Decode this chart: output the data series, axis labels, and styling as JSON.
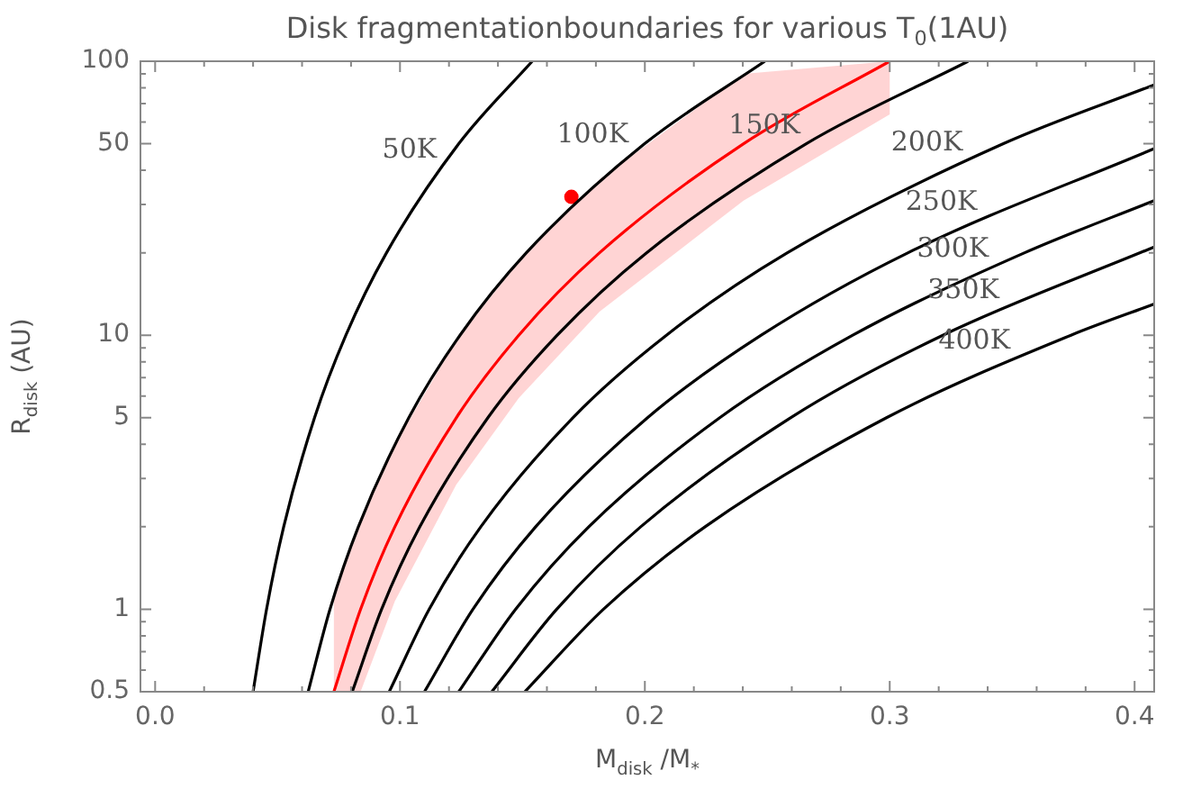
{
  "chart_data": {
    "type": "line",
    "title": "Disk fragmentationboundaries for various T$_{0}$(1AU)",
    "xlabel": "M$_{disk}$ /M$_{*}$",
    "ylabel": "R$_{disk}$ (AU)",
    "log": "y",
    "grid": false,
    "legend": false,
    "marker": "none",
    "line_style": "solid",
    "xlim": [
      -0.006,
      0.408
    ],
    "ylim": [
      0.5,
      100
    ],
    "xticks": [
      {
        "value": 0,
        "label": "0.0"
      },
      {
        "value": 0.02,
        "label": null
      },
      {
        "value": 0.04,
        "label": null
      },
      {
        "value": 0.06,
        "label": null
      },
      {
        "value": 0.08,
        "label": null
      },
      {
        "value": 0.1,
        "label": "0.1"
      },
      {
        "value": 0.12,
        "label": null
      },
      {
        "value": 0.14,
        "label": null
      },
      {
        "value": 0.16,
        "label": null
      },
      {
        "value": 0.18,
        "label": null
      },
      {
        "value": 0.2,
        "label": "0.2"
      },
      {
        "value": 0.22,
        "label": null
      },
      {
        "value": 0.24,
        "label": null
      },
      {
        "value": 0.26,
        "label": null
      },
      {
        "value": 0.28,
        "label": null
      },
      {
        "value": 0.3,
        "label": "0.3"
      },
      {
        "value": 0.32,
        "label": null
      },
      {
        "value": 0.34,
        "label": null
      },
      {
        "value": 0.36,
        "label": null
      },
      {
        "value": 0.38,
        "label": null
      },
      {
        "value": 0.4,
        "label": "0.4"
      }
    ],
    "yticks": [
      0.5,
      {
        "value": 0.6,
        "label": null
      },
      {
        "value": 0.7,
        "label": null
      },
      {
        "value": 0.8,
        "label": null
      },
      {
        "value": 0.9,
        "label": null
      },
      1,
      {
        "value": 2,
        "label": null
      },
      {
        "value": 3,
        "label": null
      },
      {
        "value": 4,
        "label": null
      },
      5,
      {
        "value": 6,
        "label": null
      },
      {
        "value": 7,
        "label": null
      },
      {
        "value": 8,
        "label": null
      },
      {
        "value": 9,
        "label": null
      },
      10,
      {
        "value": 20,
        "label": null
      },
      {
        "value": 30,
        "label": null
      },
      {
        "value": 40,
        "label": null
      },
      50,
      {
        "value": 60,
        "label": null
      },
      {
        "value": 70,
        "label": null
      },
      {
        "value": 80,
        "label": null
      },
      {
        "value": 90,
        "label": null
      },
      100
    ],
    "series": [
      {
        "name": "50K",
        "color": "#000000",
        "x": [
          0.04,
          0.0455,
          0.0525,
          0.0651,
          0.0779,
          0.0945,
          0.124,
          0.154
        ],
        "values": [
          0.5,
          1,
          2,
          5,
          10,
          20,
          50,
          100
        ]
      },
      {
        "name": "100K",
        "color": "#000000",
        "x": [
          0.0625,
          0.0714,
          0.083,
          0.1036,
          0.1245,
          0.1516,
          0.1999,
          0.249
        ],
        "values": [
          0.5,
          1,
          2,
          5,
          10,
          20,
          50,
          100
        ]
      },
      {
        "color": "#ff0000",
        "x": [
          0.073,
          0.0839,
          0.0979,
          0.123,
          0.1485,
          0.1815,
          0.2403,
          0.3
        ],
        "values": [
          0.5,
          1,
          2,
          5,
          10,
          20,
          50,
          100
        ],
        "lower": [
          0.5,
          0.5,
          1.07,
          2.85,
          5.9,
          12.2,
          31,
          64
        ],
        "upper": [
          1.11,
          2.1,
          4,
          9.6,
          18.6,
          37,
          90,
          100
        ]
      },
      {
        "name": "150K",
        "color": "#000000",
        "x": [
          0.0805,
          0.0925,
          0.1081,
          0.1359,
          0.1642,
          0.2007,
          0.2659,
          0.332
        ],
        "values": [
          0.5,
          1,
          2,
          5,
          10,
          20,
          50,
          100
        ]
      },
      {
        "name": "200K",
        "color": "#000000",
        "x": [
          0.0956,
          0.1119,
          0.133,
          0.1706,
          0.2088,
          0.2582,
          0.3464,
          0.408
        ],
        "values": [
          0.5,
          1,
          2,
          5,
          10,
          20,
          50,
          82
        ]
      },
      {
        "name": "250K",
        "color": "#000000",
        "x": [
          0.11,
          0.1298,
          0.1554,
          0.2011,
          0.2475,
          0.3075,
          0.408
        ],
        "values": [
          0.5,
          1,
          2,
          5,
          10,
          20,
          48
        ]
      },
      {
        "name": "300K",
        "color": "#000000",
        "x": [
          0.124,
          0.1472,
          0.1771,
          0.2306,
          0.2849,
          0.3551,
          0.408
        ],
        "values": [
          0.5,
          1,
          2,
          5,
          10,
          20,
          31
        ]
      },
      {
        "name": "350K",
        "color": "#000000",
        "x": [
          0.1375,
          0.164,
          0.1983,
          0.2595,
          0.3217,
          0.408
        ],
        "values": [
          0.5,
          1,
          2,
          5,
          10,
          21
        ]
      },
      {
        "name": "400K",
        "color": "#000000",
        "x": [
          0.151,
          0.1831,
          0.2246,
          0.2987,
          0.374,
          0.408
        ],
        "values": [
          0.5,
          1,
          2,
          5,
          10,
          13
        ]
      },
      {
        "type": "scatter",
        "marker": "circle",
        "color": "#ff0000",
        "x": [
          0.17
        ],
        "values": [
          32
        ]
      }
    ]
  }
}
